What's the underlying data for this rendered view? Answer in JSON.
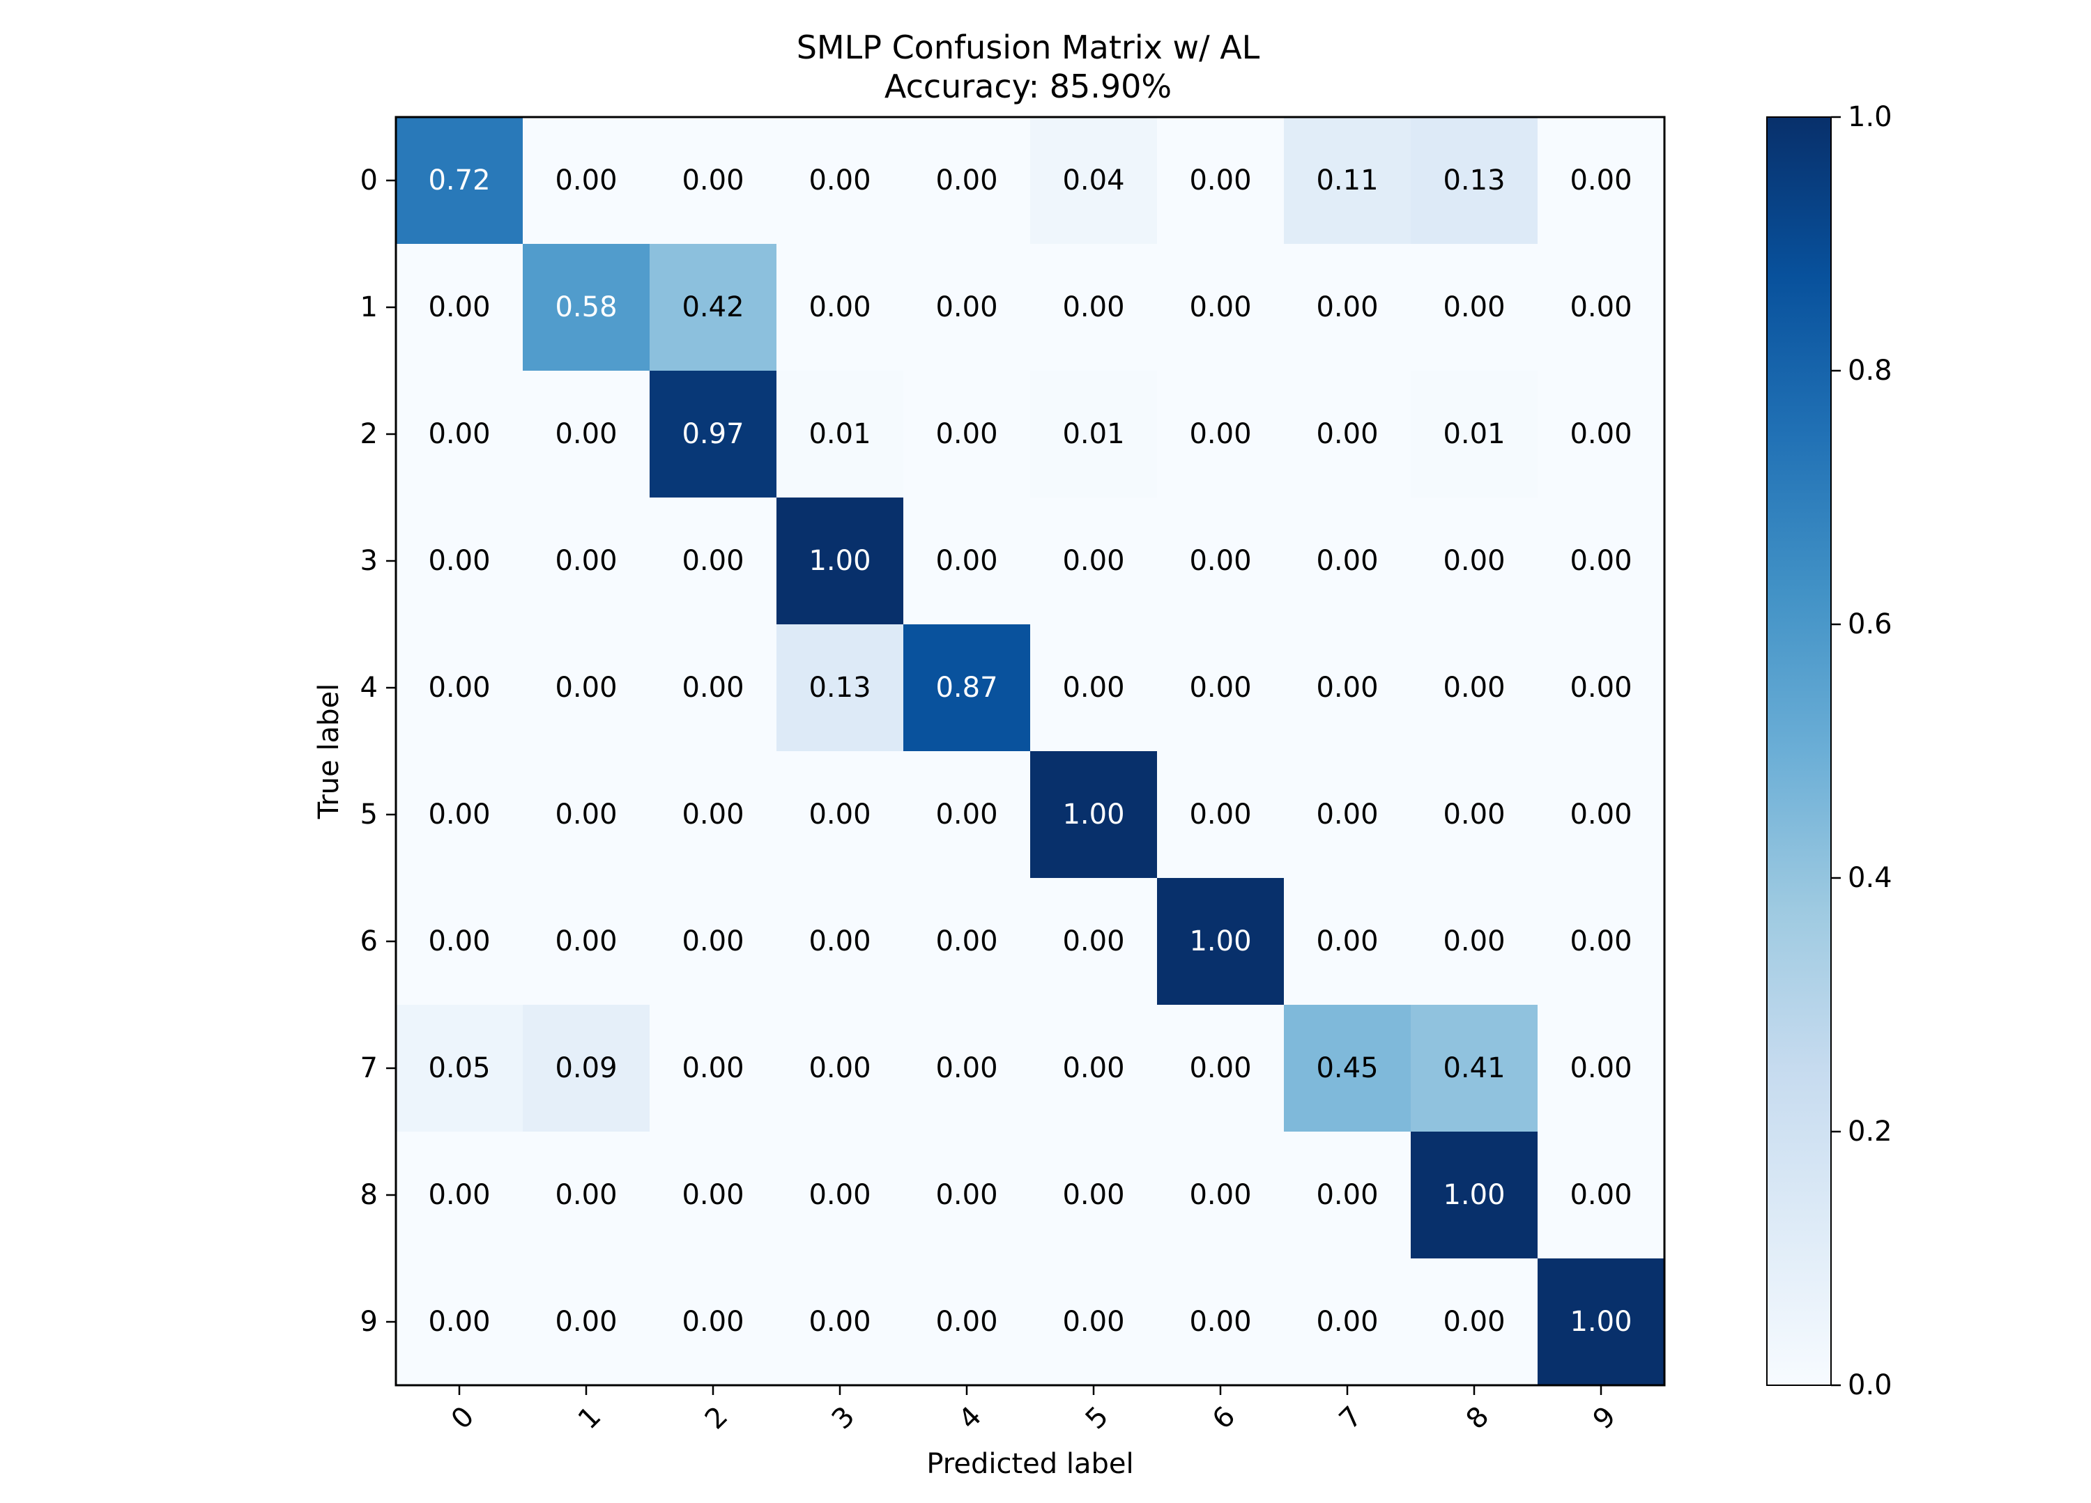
{
  "chart_data": {
    "type": "heatmap",
    "title": "SMLP Confusion Matrix w/ AL",
    "subtitle": "Accuracy: 85.90%",
    "xlabel": "Predicted label",
    "ylabel": "True label",
    "x_categories": [
      "0",
      "1",
      "2",
      "3",
      "4",
      "5",
      "6",
      "7",
      "8",
      "9"
    ],
    "y_categories": [
      "0",
      "1",
      "2",
      "3",
      "4",
      "5",
      "6",
      "7",
      "8",
      "9"
    ],
    "values": [
      [
        0.72,
        0.0,
        0.0,
        0.0,
        0.0,
        0.04,
        0.0,
        0.11,
        0.13,
        0.0
      ],
      [
        0.0,
        0.58,
        0.42,
        0.0,
        0.0,
        0.0,
        0.0,
        0.0,
        0.0,
        0.0
      ],
      [
        0.0,
        0.0,
        0.97,
        0.01,
        0.0,
        0.01,
        0.0,
        0.0,
        0.01,
        0.0
      ],
      [
        0.0,
        0.0,
        0.0,
        1.0,
        0.0,
        0.0,
        0.0,
        0.0,
        0.0,
        0.0
      ],
      [
        0.0,
        0.0,
        0.0,
        0.13,
        0.87,
        0.0,
        0.0,
        0.0,
        0.0,
        0.0
      ],
      [
        0.0,
        0.0,
        0.0,
        0.0,
        0.0,
        1.0,
        0.0,
        0.0,
        0.0,
        0.0
      ],
      [
        0.0,
        0.0,
        0.0,
        0.0,
        0.0,
        0.0,
        1.0,
        0.0,
        0.0,
        0.0
      ],
      [
        0.05,
        0.09,
        0.0,
        0.0,
        0.0,
        0.0,
        0.0,
        0.45,
        0.41,
        0.0
      ],
      [
        0.0,
        0.0,
        0.0,
        0.0,
        0.0,
        0.0,
        0.0,
        0.0,
        1.0,
        0.0
      ],
      [
        0.0,
        0.0,
        0.0,
        0.0,
        0.0,
        0.0,
        0.0,
        0.0,
        0.0,
        1.0
      ]
    ],
    "colormap": "Blues",
    "colorbar": {
      "range": [
        0.0,
        1.0
      ],
      "ticks": [
        "0.0",
        "0.2",
        "0.4",
        "0.6",
        "0.8",
        "1.0"
      ]
    },
    "grid": false
  }
}
